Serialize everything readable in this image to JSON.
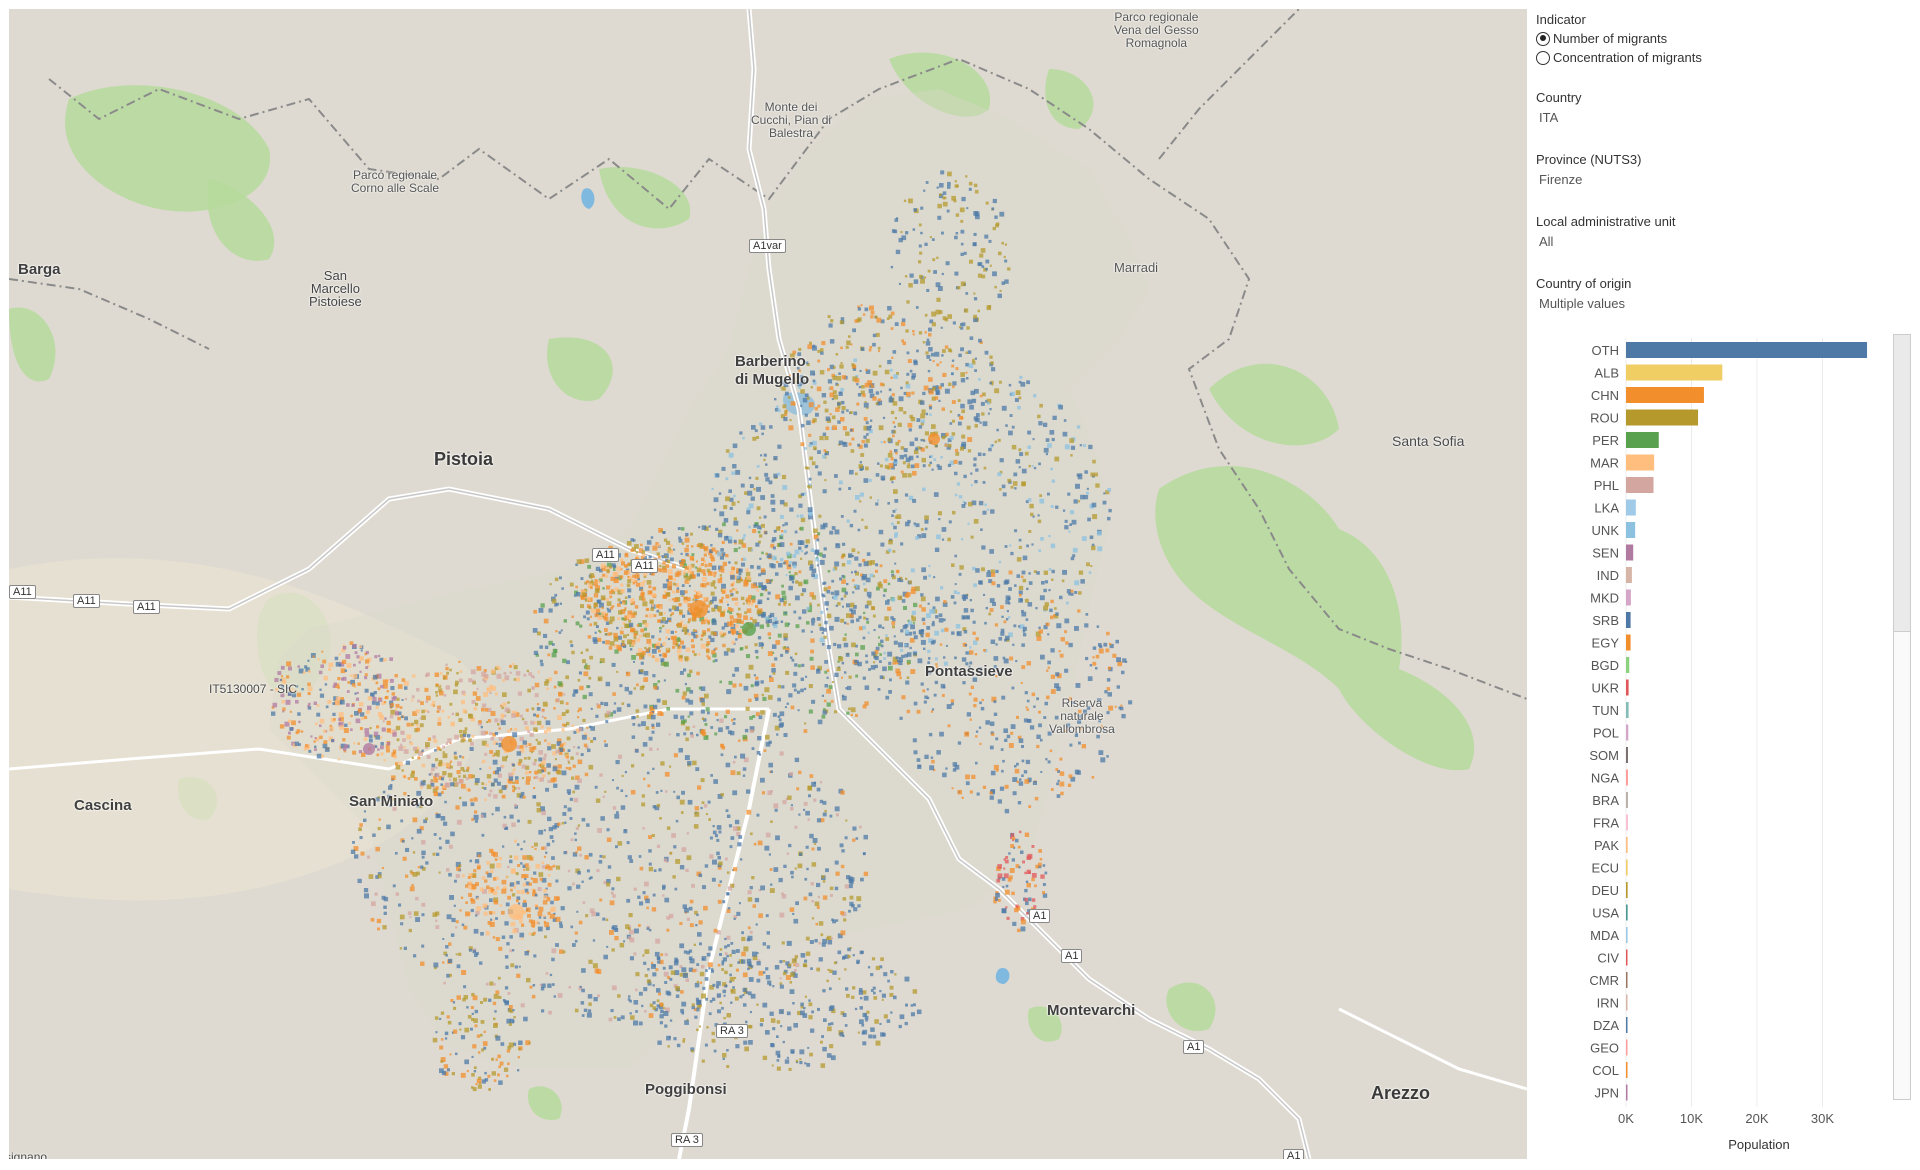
{
  "map": {
    "labels": {
      "barga": "Barga",
      "san_marcello": "San\nMarcello\nPistoiese",
      "parco_corno": "Parco regionale\nCorno alle Scale",
      "parco_vena": "Parco regionale\nVena del Gesso\nRomagnola",
      "monte_cucchi": "Monte dei\nCucchi, Pian di\nBalestra",
      "marradi": "Marradi",
      "barberino": "Barberino\ndi Mugello",
      "santa_sofia": "Santa Sofia",
      "pistoia": "Pistoia",
      "pontassieve": "Pontassieve",
      "sic": "IT5130007 - SIC",
      "riserva": "Riserva\nnaturale\nVallombrosa",
      "cascina": "Cascina",
      "san_miniato": "San Miniato",
      "montevarchi": "Montevarchi",
      "poggibonsi": "Poggibonsi",
      "arezzo": "Arezzo",
      "a1var": "A1var",
      "a11_1": "A11",
      "a11_2": "A11",
      "a11_3": "A11",
      "a11_4": "A11",
      "a11_5": "A11",
      "a1_1": "A1",
      "a1_2": "A1",
      "a1_3": "A1",
      "a1_4": "A1",
      "ra3_1": "RA 3",
      "ra3_2": "RA 3",
      "signano": "signano"
    }
  },
  "filters": {
    "indicator": {
      "title": "Indicator",
      "options": [
        "Number of migrants",
        "Concentration of migrants"
      ],
      "selected_index": 0
    },
    "country": {
      "title": "Country",
      "value": "ITA"
    },
    "province": {
      "title": "Province (NUTS3)",
      "value": "Firenze"
    },
    "lau": {
      "title": "Local administrative unit",
      "value": "All"
    },
    "origin": {
      "title": "Country of origin",
      "value": "Multiple values"
    }
  },
  "chart_data": {
    "type": "bar",
    "orientation": "horizontal",
    "categories": [
      "OTH",
      "ALB",
      "CHN",
      "ROU",
      "PER",
      "MAR",
      "PHL",
      "LKA",
      "UNK",
      "SEN",
      "IND",
      "MKD",
      "SRB",
      "EGY",
      "BGD",
      "UKR",
      "TUN",
      "POL",
      "SOM",
      "NGA",
      "BRA",
      "FRA",
      "PAK",
      "ECU",
      "DEU",
      "USA",
      "MDA",
      "CIV",
      "CMR",
      "IRN",
      "DZA",
      "GEO",
      "COL",
      "JPN"
    ],
    "values": [
      36800,
      14700,
      11900,
      11000,
      5000,
      4300,
      4200,
      1500,
      1400,
      1100,
      900,
      750,
      700,
      700,
      500,
      400,
      400,
      350,
      300,
      300,
      300,
      300,
      250,
      250,
      250,
      250,
      250,
      200,
      200,
      200,
      200,
      200,
      150,
      150
    ],
    "colors": [
      "#4e79a7",
      "#f1ce63",
      "#f28e2b",
      "#b6992d",
      "#59a14f",
      "#ffbe7d",
      "#d4a6a0",
      "#a0cbe8",
      "#8cc2e0",
      "#b07aa1",
      "#d7b5a6",
      "#d4a6c8",
      "#4e79a7",
      "#f28e2b",
      "#8cd17d",
      "#e15759",
      "#86bcb6",
      "#d4a6c8",
      "#79706e",
      "#ff9d9a",
      "#bab0ac",
      "#fabfd2",
      "#ffbe7d",
      "#f1ce63",
      "#b6992d",
      "#499894",
      "#a0cbe8",
      "#e15759",
      "#9d7660",
      "#d7b5a6",
      "#4e79a7",
      "#ff9d9a",
      "#f28e2b",
      "#b07aa1"
    ],
    "xlabel": "Population",
    "ticks": [
      0,
      10000,
      20000,
      30000
    ],
    "tick_labels": [
      "0K",
      "10K",
      "20K",
      "30K"
    ],
    "xlim": [
      0,
      40000
    ]
  }
}
